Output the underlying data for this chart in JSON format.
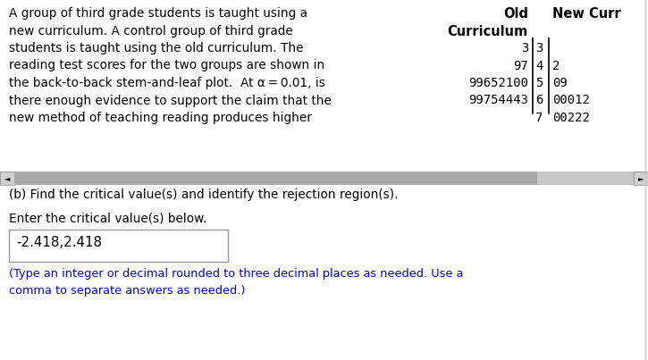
{
  "bg_color": "#ffffff",
  "paragraph_lines": [
    "A group of third grade students is taught using a",
    "new curriculum. A control group of third grade",
    "students is taught using the old curriculum. The",
    "reading test scores for the two groups are shown in",
    "the back-to-back stem-and-leaf plot.  At α = 0.01, is",
    "there enough evidence to support the claim that the",
    "new method of teaching reading produces higher"
  ],
  "stem_rows": [
    {
      "stem": "3",
      "old": "3",
      "new": ""
    },
    {
      "stem": "4",
      "old": "97",
      "new": "2"
    },
    {
      "stem": "5",
      "old": "99652100",
      "new": "09"
    },
    {
      "stem": "6",
      "old": "99754443",
      "new": "00012"
    },
    {
      "stem": "7",
      "old": "",
      "new": "00222"
    }
  ],
  "scrollbar_color": "#c8c8c8",
  "scrollbar_thumb_color": "#a8a8a8",
  "part_b_text": "(b) Find the critical value(s) and identify the rejection region(s).",
  "enter_text": "Enter the critical value(s) below.",
  "answer_text": "-2.418,2.418",
  "hint_text": "(Type an integer or decimal rounded to three decimal places as needed. Use a\ncomma to separate answers as needed.)",
  "answer_box_color": "#ffffff",
  "answer_box_border": "#999999",
  "hint_color": "#0000cc",
  "font_size_para": 9.8,
  "font_size_table": 10.0,
  "font_size_header": 10.5
}
